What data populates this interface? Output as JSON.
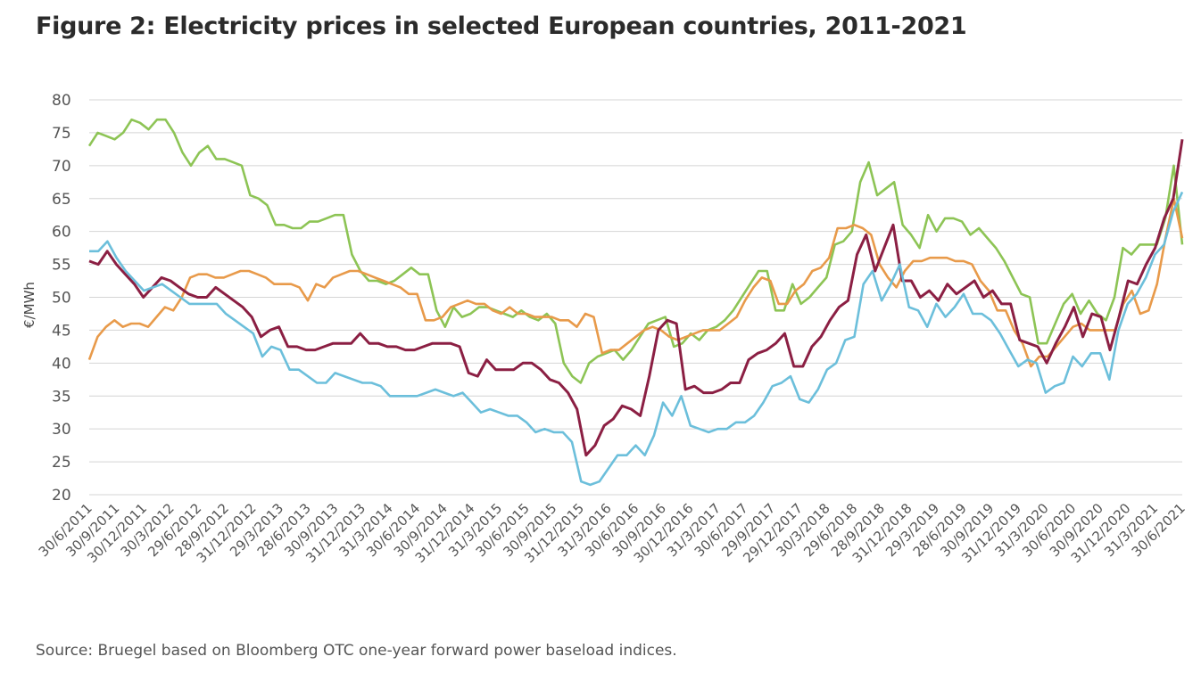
{
  "title": "Figure 2: Electricity prices in selected European countries, 2011-2021",
  "source": "Source: Bruegel based on Bloomberg OTC one-year forward power baseload indices.",
  "colors": {
    "green": "#8dc455",
    "orange": "#e89a4a",
    "maroon": "#8b1f43",
    "blue": "#6cbfdb",
    "grid": "#d4d4d4"
  },
  "chart_data": {
    "type": "line",
    "title": "Figure 2: Electricity prices in selected European countries, 2011-2021",
    "ylabel": "€/MWh",
    "xlabel": "",
    "ylim": [
      20,
      80
    ],
    "yticks": [
      20,
      25,
      30,
      35,
      40,
      45,
      50,
      55,
      60,
      65,
      70,
      75,
      80
    ],
    "grid": true,
    "x_ticklabels": [
      "30/6/2011",
      "30/9/2011",
      "30/12/2011",
      "30/3/2012",
      "29/6/2012",
      "28/9/2012",
      "31/12/2012",
      "29/3/2013",
      "28/6/2013",
      "30/9/2013",
      "31/12/2013",
      "31/3/2014",
      "30/6/2014",
      "30/9/2014",
      "31/12/2014",
      "31/3/2015",
      "30/6/2015",
      "30/9/2015",
      "31/12/2015",
      "31/3/2016",
      "30/6/2016",
      "30/9/2016",
      "30/12/2016",
      "31/3/2017",
      "30/6/2017",
      "29/9/2017",
      "29/12/2017",
      "30/3/2018",
      "29/6/2018",
      "28/9/2018",
      "31/12/2018",
      "29/3/2019",
      "28/6/2019",
      "30/9/2019",
      "31/12/2019",
      "31/3/2020",
      "30/6/2020",
      "30/9/2020",
      "31/12/2020",
      "31/3/2021",
      "30/6/2021"
    ],
    "series": [
      {
        "color": "#8dc455",
        "values": [
          73,
          75,
          74.5,
          74,
          75,
          77,
          76.5,
          75.5,
          77,
          77,
          75,
          72,
          70,
          72,
          73,
          71,
          71,
          70.5,
          70,
          65.5,
          65,
          64,
          61,
          61,
          60.5,
          60.5,
          61.5,
          61.5,
          62,
          62.5,
          62.5,
          56.5,
          54,
          52.5,
          52.5,
          52,
          52.5,
          53.5,
          54.5,
          53.5,
          53.5,
          48,
          45.5,
          48.5,
          47,
          47.5,
          48.5,
          48.5,
          48,
          47.5,
          47,
          48,
          47,
          46.5,
          47.5,
          46,
          40,
          38,
          37,
          40,
          41,
          41.5,
          42,
          40.5,
          42,
          44,
          46,
          46.5,
          47,
          42.5,
          43,
          44.5,
          43.5,
          45,
          45.5,
          46.5,
          48,
          50,
          52,
          54,
          54,
          48,
          48,
          52,
          49,
          50,
          51.5,
          53,
          58,
          58.5,
          60,
          67.5,
          70.5,
          65.5,
          66.5,
          67.5,
          61,
          59.5,
          57.5,
          62.5,
          60,
          62,
          62,
          61.5,
          59.5,
          60.5,
          59,
          57.5,
          55.5,
          53,
          50.5,
          50,
          43,
          43,
          46,
          49,
          50.5,
          47.5,
          49.5,
          47.5,
          46.5,
          50,
          57.5,
          56.5,
          58,
          58,
          58,
          62,
          70,
          58
        ]
      },
      {
        "color": "#e89a4a",
        "values": [
          40.5,
          44,
          45.5,
          46.5,
          45.5,
          46,
          46,
          45.5,
          47,
          48.5,
          48,
          50,
          53,
          53.5,
          53.5,
          53,
          53,
          53.5,
          54,
          54,
          53.5,
          53,
          52,
          52,
          52,
          51.5,
          49.5,
          52,
          51.5,
          53,
          53.5,
          54,
          54,
          53.5,
          53,
          52.5,
          52,
          51.5,
          50.5,
          50.5,
          46.5,
          46.5,
          47,
          48.5,
          49,
          49.5,
          49,
          49,
          48,
          47.5,
          48.5,
          47.5,
          47.5,
          47,
          47,
          47,
          46.5,
          46.5,
          45.5,
          47.5,
          47,
          41.5,
          42,
          42,
          43,
          44,
          45,
          45.5,
          45,
          44,
          43.5,
          44,
          44.5,
          45,
          45,
          45,
          46,
          47,
          49.5,
          51.5,
          53,
          52.5,
          49,
          49,
          51,
          52,
          54,
          54.5,
          56,
          60.5,
          60.5,
          61,
          60.5,
          59.5,
          55,
          53,
          51.5,
          54,
          55.5,
          55.5,
          56,
          56,
          56,
          55.5,
          55.5,
          55,
          52.5,
          51,
          48,
          48,
          45,
          43,
          39.5,
          41,
          41,
          42.5,
          44,
          45.5,
          46,
          45,
          45,
          45,
          45,
          49,
          51,
          47.5,
          48,
          52,
          59,
          65,
          59
        ]
      },
      {
        "color": "#8b1f43",
        "values": [
          55.5,
          55,
          57,
          55,
          53.5,
          52,
          50,
          51.5,
          53,
          52.5,
          51.5,
          50.5,
          50,
          50,
          51.5,
          50.5,
          49.5,
          48.5,
          47,
          44,
          45,
          45.5,
          42.5,
          42.5,
          42,
          42,
          42.5,
          43,
          43,
          43,
          44.5,
          43,
          43,
          42.5,
          42.5,
          42,
          42,
          42.5,
          43,
          43,
          43,
          42.5,
          38.5,
          38,
          40.5,
          39,
          39,
          39,
          40,
          40,
          39,
          37.5,
          37,
          35.5,
          33,
          26,
          27.5,
          30.5,
          31.5,
          33.5,
          33,
          32,
          38,
          45,
          46.5,
          46,
          36,
          36.5,
          35.5,
          35.5,
          36,
          37,
          37,
          40.5,
          41.5,
          42,
          43,
          44.5,
          39.5,
          39.5,
          42.5,
          44,
          46.5,
          48.5,
          49.5,
          56.5,
          59.5,
          54,
          57.5,
          61,
          52.5,
          52.5,
          50,
          51,
          49.5,
          52,
          50.5,
          51.5,
          52.5,
          50,
          51,
          49,
          49,
          43.5,
          43,
          42.5,
          40,
          43,
          45.5,
          48.5,
          44,
          47.5,
          47,
          42,
          47,
          52.5,
          52,
          55,
          57.5,
          62,
          65,
          74
        ]
      },
      {
        "color": "#6cbfdb",
        "values": [
          57,
          57,
          58.5,
          56,
          54,
          52.5,
          51,
          51.5,
          52,
          51,
          50,
          49,
          49,
          49,
          49,
          47.5,
          46.5,
          45.5,
          44.5,
          41,
          42.5,
          42,
          39,
          39,
          38,
          37,
          37,
          38.5,
          38,
          37.5,
          37,
          37,
          36.5,
          35,
          35,
          35,
          35,
          35.5,
          36,
          35.5,
          35,
          35.5,
          34,
          32.5,
          33,
          32.5,
          32,
          32,
          31,
          29.5,
          30,
          29.5,
          29.5,
          28,
          22,
          21.5,
          22,
          24,
          26,
          26,
          27.5,
          26,
          29,
          34,
          32,
          35,
          30.5,
          30,
          29.5,
          30,
          30,
          31,
          31,
          32,
          34,
          36.5,
          37,
          38,
          34.5,
          34,
          36,
          39,
          40,
          43.5,
          44,
          52,
          54,
          49.5,
          52,
          55,
          48.5,
          48,
          45.5,
          49,
          47,
          48.5,
          50.5,
          47.5,
          47.5,
          46.5,
          44.5,
          42,
          39.5,
          40.5,
          40,
          35.5,
          36.5,
          37,
          41,
          39.5,
          41.5,
          41.5,
          37.5,
          45,
          49,
          50.5,
          53,
          56.5,
          58,
          63,
          66
        ]
      }
    ]
  }
}
